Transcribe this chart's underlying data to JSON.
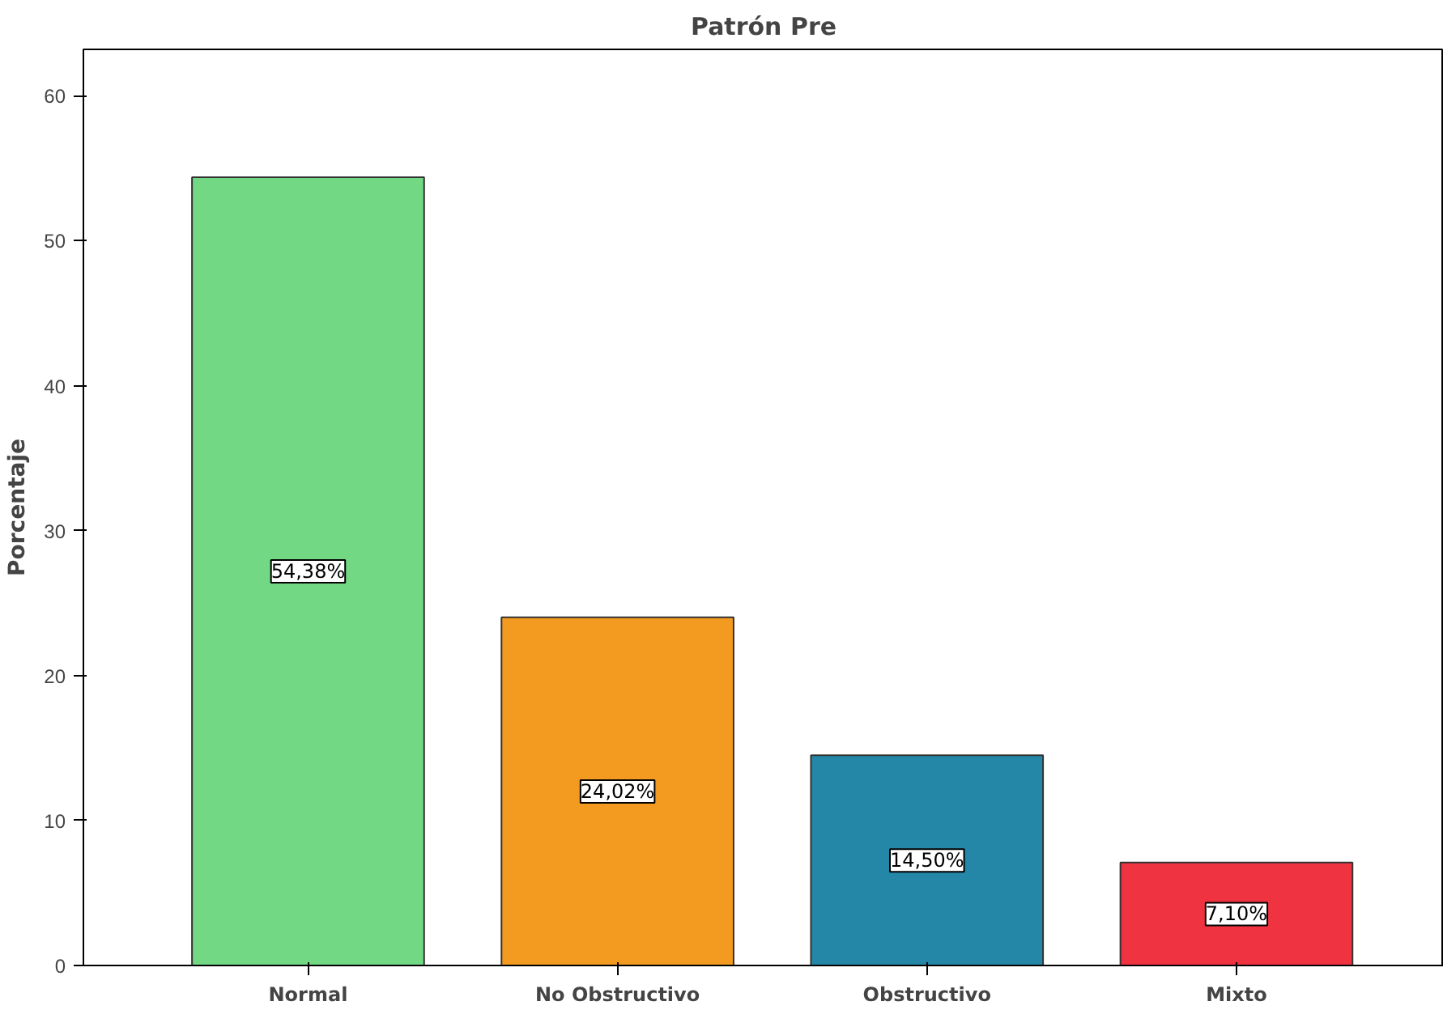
{
  "chart_data": {
    "type": "bar",
    "title": "Patrón Pre",
    "ylabel": "Porcentaje",
    "categories": [
      "Normal",
      "No Obstructivo",
      "Obstructivo",
      "Mixto"
    ],
    "values": [
      54.38,
      24.02,
      14.5,
      7.1
    ],
    "colors": [
      "#72d883",
      "#f39a20",
      "#2487a8",
      "#ef3340"
    ],
    "value_labels": [
      "54,38%",
      "24,02%",
      "14,50%",
      "7,10%"
    ],
    "ylim": [
      0,
      63.2
    ],
    "yticks": [
      0,
      10,
      20,
      30,
      40,
      50,
      60
    ],
    "grid": false
  }
}
